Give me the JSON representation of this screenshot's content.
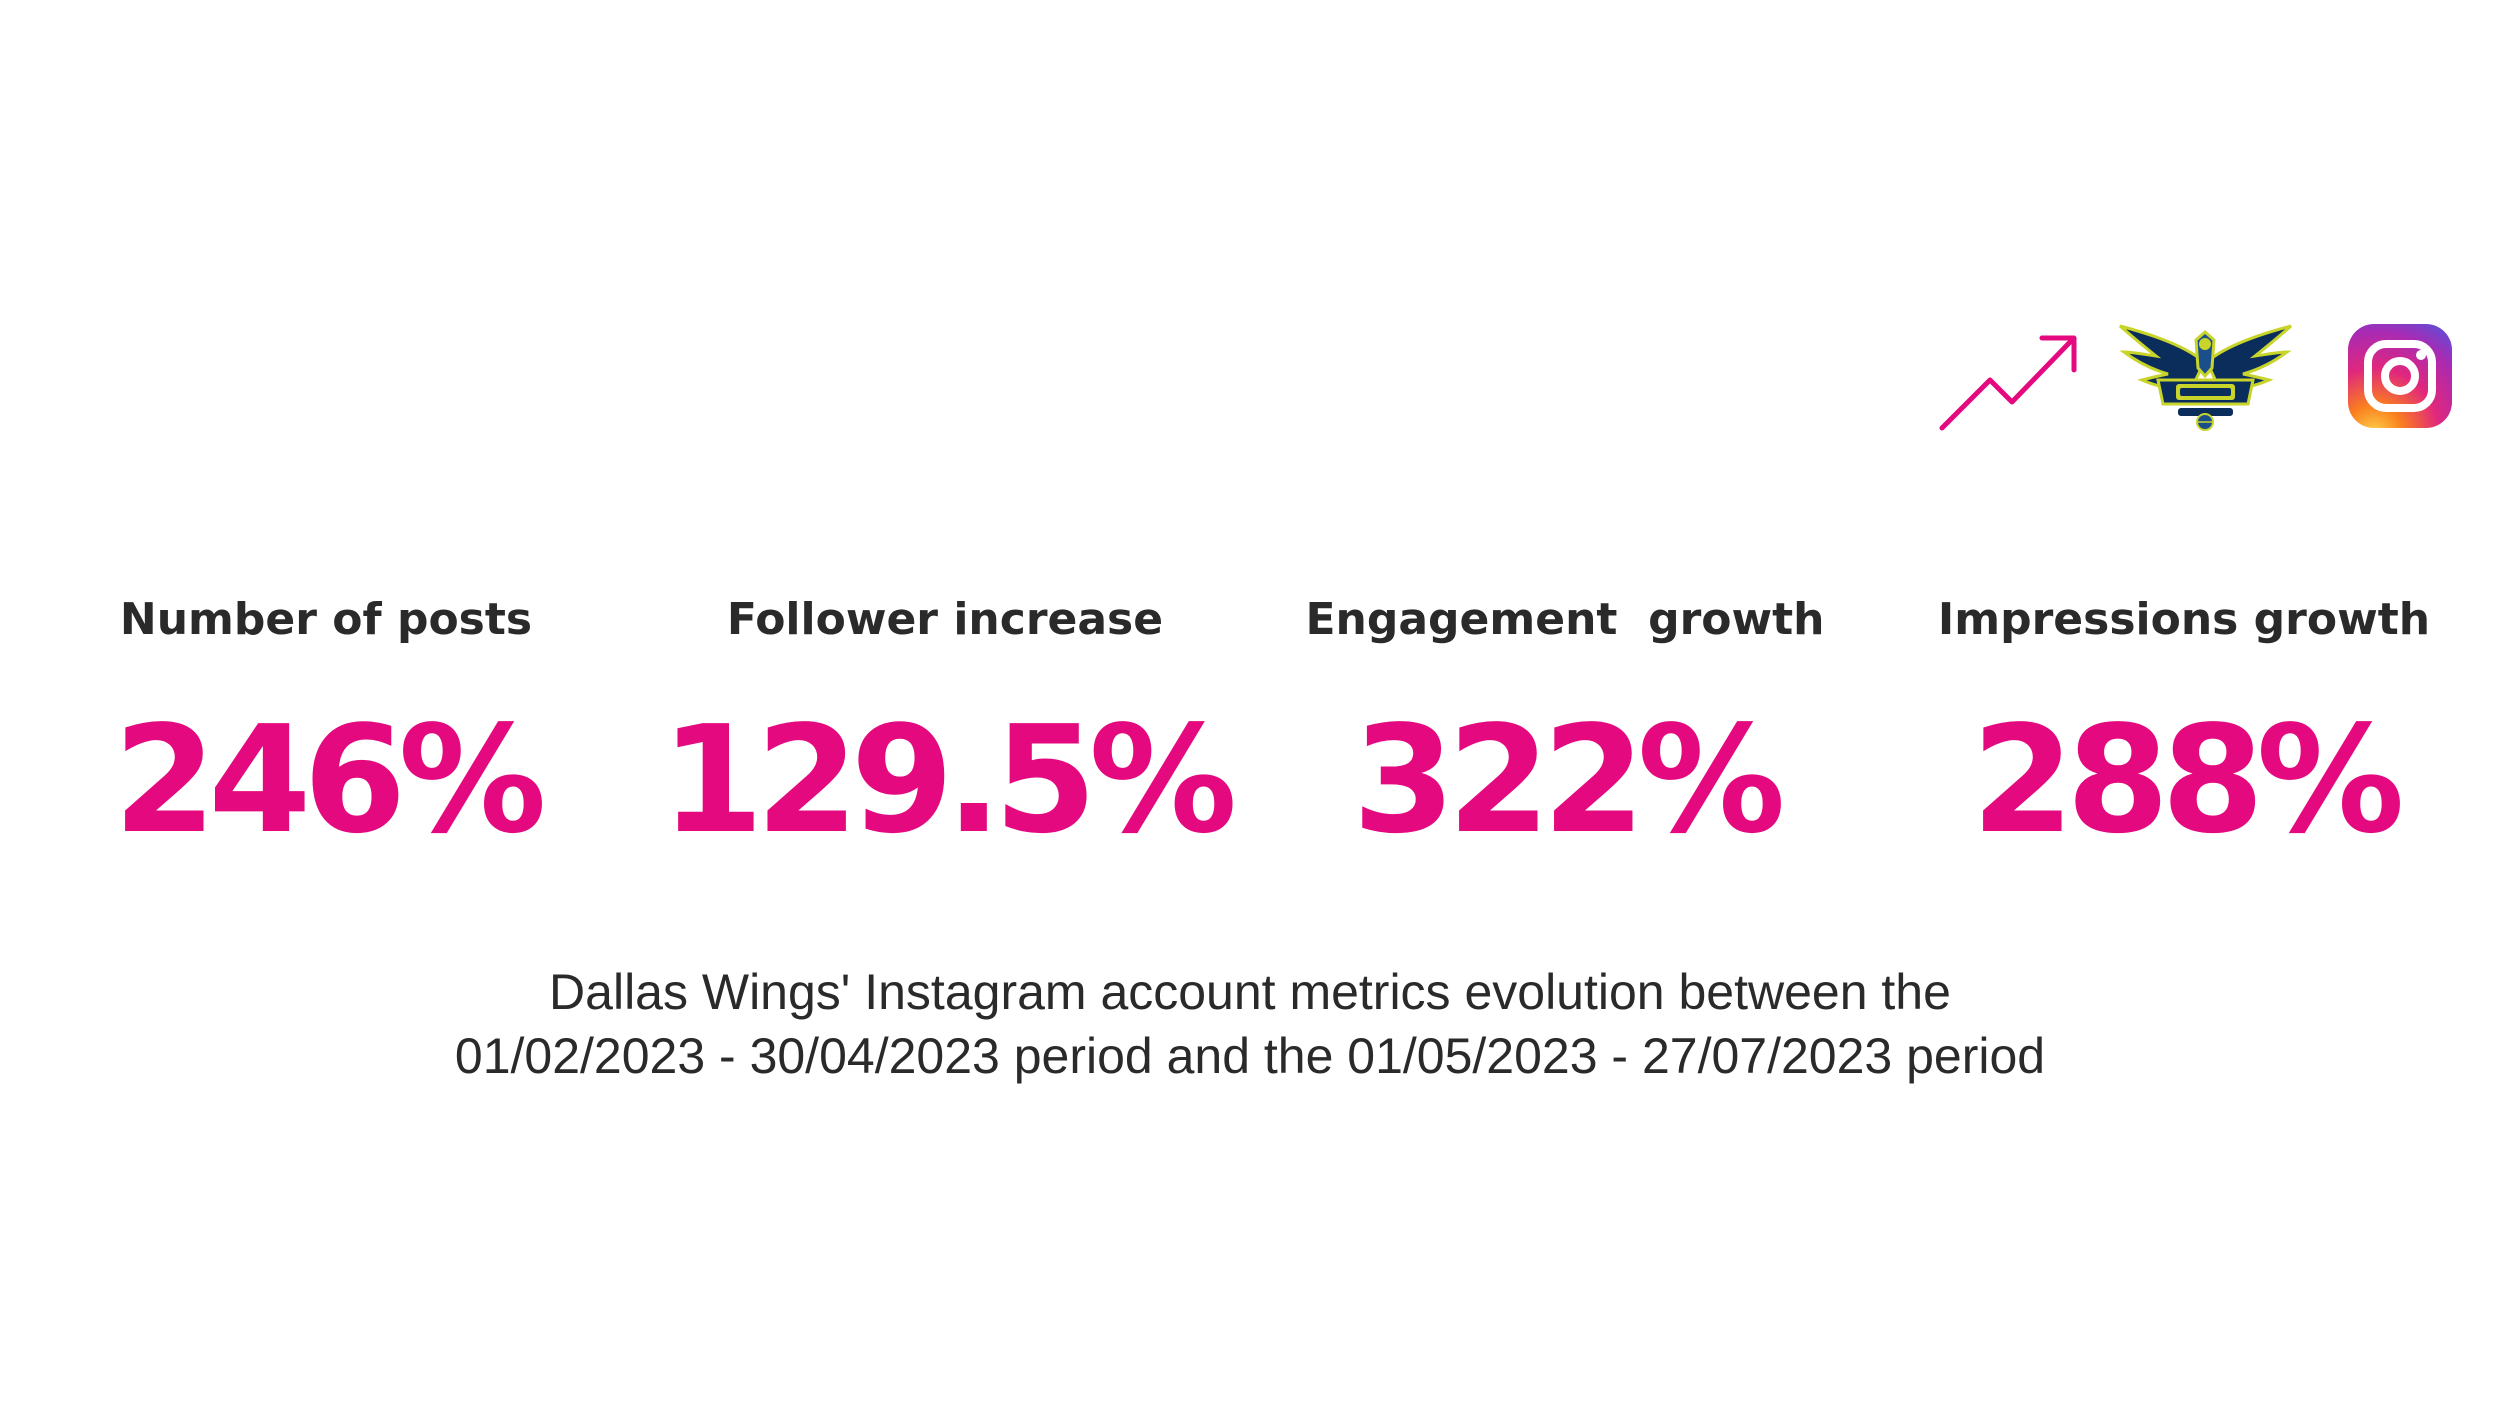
{
  "icons": {
    "trend": "trend-up-arrow-icon",
    "team_logo": "dallas-wings-logo-icon",
    "instagram": "instagram-icon"
  },
  "colors": {
    "accent": "#e5097f",
    "text": "#2a2a2a",
    "background": "#ffffff"
  },
  "metrics": [
    {
      "label": "Number of posts",
      "value": "246%"
    },
    {
      "label": "Follower increase",
      "value": "129.5%"
    },
    {
      "label": "Engagement  growth",
      "value": "322%"
    },
    {
      "label": "Impressions growth",
      "value": "288%"
    }
  ],
  "caption": {
    "line1": "Dallas Wings' Instagram account metrics evolution between the",
    "line2": "01/02/2023 - 30/04/2023 period and the 01/05/2023 - 27/07/2023 period"
  }
}
